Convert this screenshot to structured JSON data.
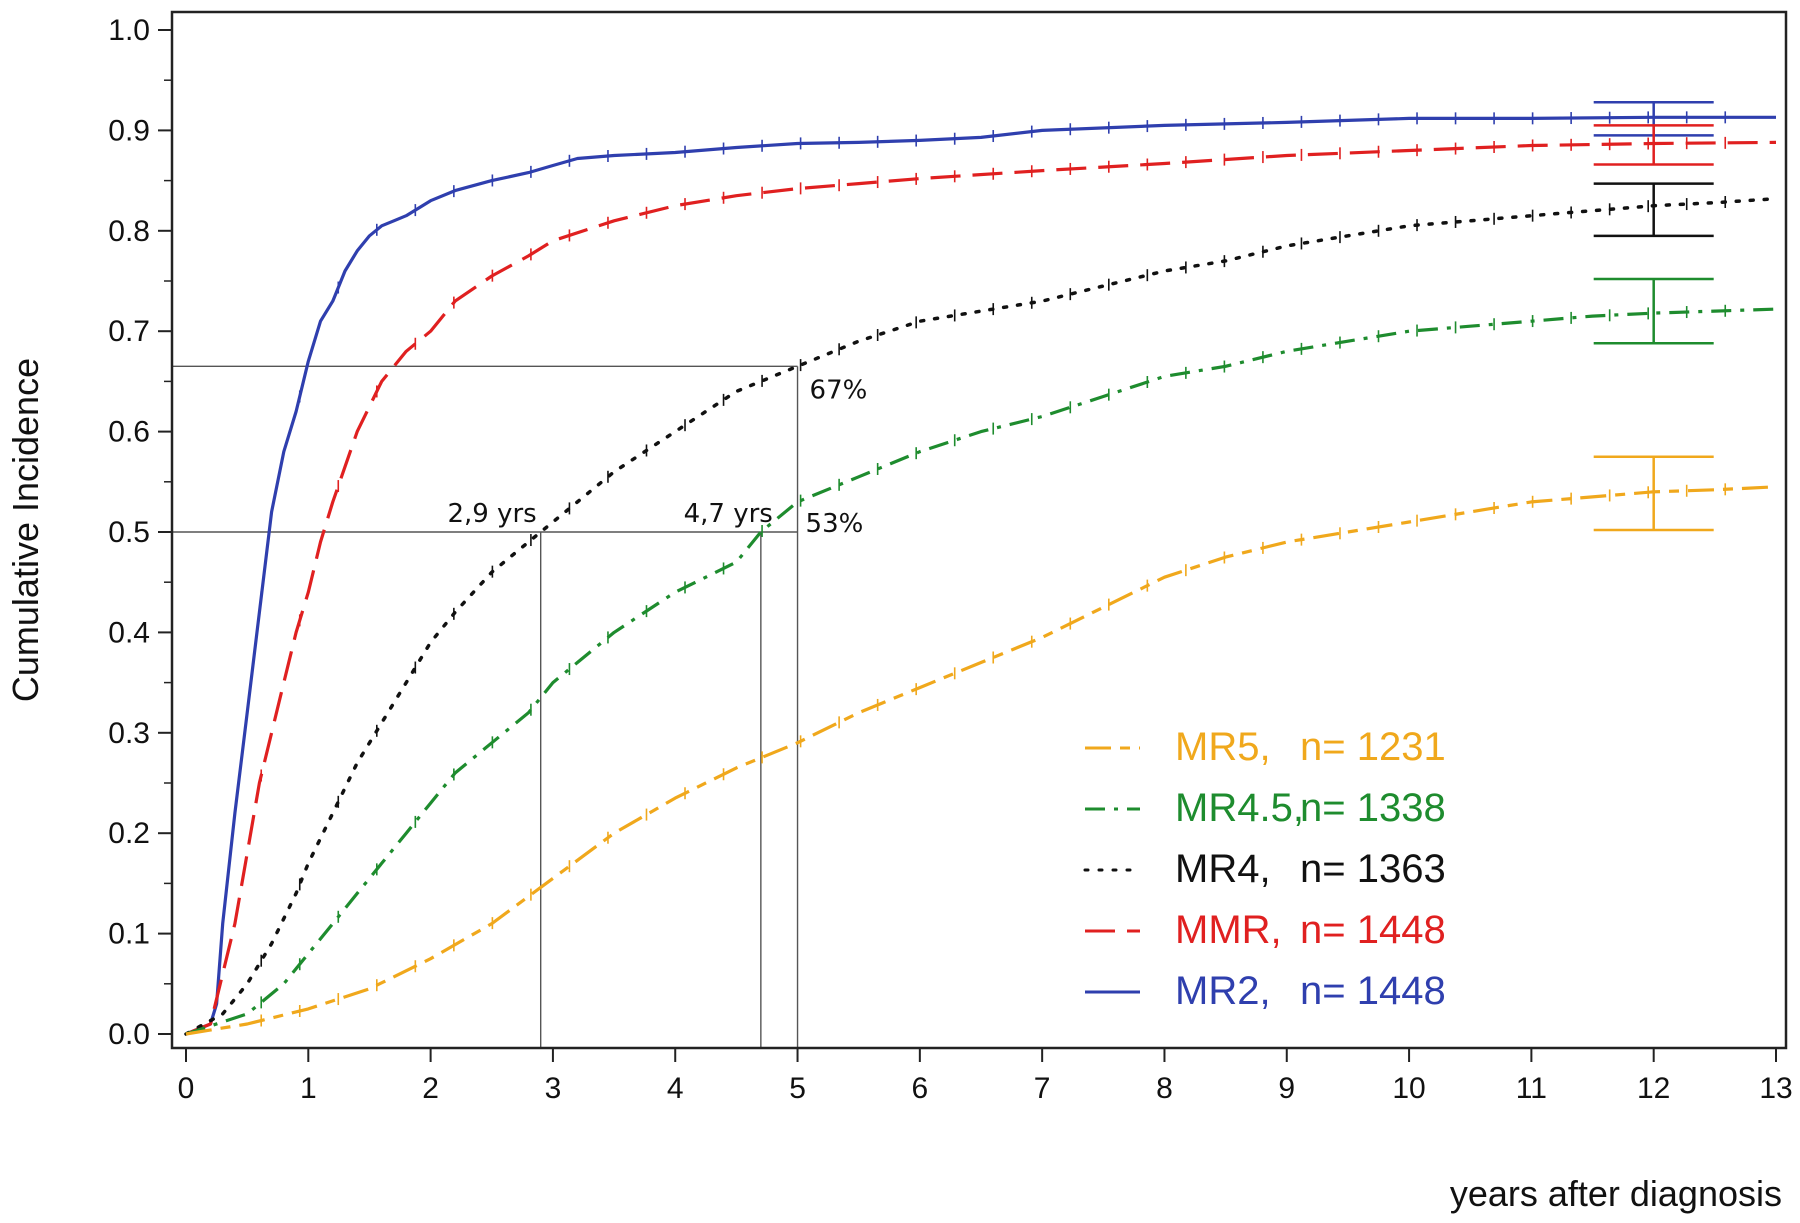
{
  "chart_data": {
    "type": "line",
    "xlabel": "years after diagnosis",
    "ylabel": "Cumulative Incidence",
    "xlim": [
      0,
      13
    ],
    "ylim": [
      0,
      1.0
    ],
    "x_ticks": [
      0,
      1,
      2,
      3,
      4,
      5,
      6,
      7,
      8,
      9,
      10,
      11,
      12,
      13
    ],
    "y_ticks": [
      0.0,
      0.1,
      0.2,
      0.3,
      0.4,
      0.5,
      0.6,
      0.7,
      0.8,
      0.9,
      1.0
    ],
    "x_tick_labels": [
      "0",
      "1",
      "2",
      "3",
      "4",
      "5",
      "6",
      "7",
      "8",
      "9",
      "10",
      "11",
      "12",
      "13"
    ],
    "y_tick_labels": [
      "0.0",
      "0.1",
      "0.2",
      "0.3",
      "0.4",
      "0.5",
      "0.6",
      "0.7",
      "0.8",
      "0.9",
      "1.0"
    ],
    "grid": false,
    "legend_position": "bottom-right",
    "series": [
      {
        "name": "MR2",
        "legend_label": "MR2,",
        "legend_n": "n= 1448",
        "color": "#2f3fae",
        "dash": "solid",
        "x": [
          0,
          0.2,
          0.25,
          0.3,
          0.4,
          0.5,
          0.55,
          0.6,
          0.7,
          0.8,
          0.9,
          1.0,
          1.1,
          1.2,
          1.3,
          1.4,
          1.5,
          1.6,
          1.7,
          1.8,
          2.0,
          2.2,
          2.5,
          2.8,
          3.0,
          3.2,
          3.5,
          4.0,
          4.5,
          5.0,
          5.5,
          6.0,
          6.5,
          7.0,
          8.0,
          9.0,
          10.0,
          11.0,
          12.0,
          13.0
        ],
        "y": [
          0,
          0.01,
          0.03,
          0.11,
          0.22,
          0.32,
          0.37,
          0.42,
          0.52,
          0.58,
          0.62,
          0.67,
          0.71,
          0.73,
          0.76,
          0.78,
          0.795,
          0.805,
          0.81,
          0.815,
          0.83,
          0.84,
          0.85,
          0.858,
          0.865,
          0.872,
          0.875,
          0.878,
          0.883,
          0.887,
          0.888,
          0.89,
          0.893,
          0.9,
          0.905,
          0.908,
          0.912,
          0.912,
          0.913,
          0.913
        ],
        "ci_at_12": [
          0.895,
          0.928
        ]
      },
      {
        "name": "MMR",
        "legend_label": "MMR,",
        "legend_n": "n= 1448",
        "color": "#e02020",
        "dash": "long-dash",
        "x": [
          0,
          0.2,
          0.3,
          0.4,
          0.5,
          0.6,
          0.7,
          0.8,
          0.9,
          1.0,
          1.1,
          1.2,
          1.4,
          1.6,
          1.8,
          2.0,
          2.2,
          2.5,
          2.8,
          3.0,
          3.5,
          4.0,
          4.5,
          5.0,
          5.5,
          6.0,
          7.0,
          8.0,
          9.0,
          10.0,
          11.0,
          12.0,
          13.0
        ],
        "y": [
          0,
          0.01,
          0.06,
          0.11,
          0.18,
          0.25,
          0.3,
          0.35,
          0.4,
          0.44,
          0.49,
          0.53,
          0.6,
          0.65,
          0.68,
          0.7,
          0.73,
          0.755,
          0.775,
          0.79,
          0.81,
          0.825,
          0.835,
          0.842,
          0.847,
          0.852,
          0.86,
          0.867,
          0.875,
          0.88,
          0.885,
          0.887,
          0.888
        ],
        "ci_at_12": [
          0.866,
          0.905
        ]
      },
      {
        "name": "MR4",
        "legend_label": "MR4,",
        "legend_n": "n= 1363",
        "color": "#111111",
        "dash": "dotted",
        "x": [
          0,
          0.3,
          0.5,
          0.7,
          0.9,
          1.0,
          1.2,
          1.4,
          1.6,
          1.8,
          2.0,
          2.2,
          2.5,
          2.9,
          3.0,
          3.5,
          4.0,
          4.5,
          5.0,
          5.5,
          6.0,
          6.5,
          7.0,
          7.5,
          8.0,
          8.5,
          9.0,
          9.5,
          10.0,
          10.5,
          11.0,
          11.5,
          12.0,
          12.5,
          13.0
        ],
        "y": [
          0,
          0.02,
          0.05,
          0.09,
          0.14,
          0.17,
          0.22,
          0.27,
          0.31,
          0.35,
          0.39,
          0.42,
          0.46,
          0.5,
          0.51,
          0.56,
          0.6,
          0.64,
          0.665,
          0.69,
          0.71,
          0.72,
          0.73,
          0.745,
          0.76,
          0.77,
          0.785,
          0.795,
          0.805,
          0.81,
          0.815,
          0.82,
          0.825,
          0.828,
          0.832
        ],
        "ci_at_12": [
          0.795,
          0.847
        ]
      },
      {
        "name": "MR4.5",
        "legend_label": "MR4.5,",
        "legend_n": "n= 1338",
        "color": "#1e8c2e",
        "dash": "dash-dot",
        "x": [
          0,
          0.5,
          0.8,
          1.0,
          1.2,
          1.4,
          1.6,
          1.8,
          2.0,
          2.2,
          2.5,
          2.8,
          3.0,
          3.2,
          3.5,
          4.0,
          4.5,
          4.7,
          5.0,
          5.5,
          6.0,
          6.5,
          7.0,
          7.5,
          8.0,
          8.5,
          9.0,
          9.5,
          10.0,
          10.5,
          11.0,
          11.5,
          12.0,
          12.5,
          13.0
        ],
        "y": [
          0,
          0.02,
          0.05,
          0.08,
          0.11,
          0.14,
          0.17,
          0.2,
          0.23,
          0.26,
          0.29,
          0.32,
          0.35,
          0.37,
          0.4,
          0.44,
          0.47,
          0.5,
          0.53,
          0.555,
          0.58,
          0.6,
          0.615,
          0.635,
          0.655,
          0.665,
          0.68,
          0.69,
          0.7,
          0.705,
          0.71,
          0.715,
          0.718,
          0.72,
          0.722
        ],
        "ci_at_12": [
          0.688,
          0.752
        ]
      },
      {
        "name": "MR5",
        "legend_label": "MR5,",
        "legend_n": "n= 1231",
        "color": "#f0a81c",
        "dash": "long-short-dash",
        "x": [
          0,
          0.5,
          1.0,
          1.5,
          2.0,
          2.5,
          3.0,
          3.5,
          4.0,
          4.5,
          5.0,
          5.5,
          6.0,
          6.5,
          7.0,
          7.5,
          8.0,
          8.5,
          9.0,
          9.5,
          10.0,
          10.5,
          11.0,
          11.5,
          12.0,
          12.5,
          13.0
        ],
        "y": [
          0,
          0.01,
          0.025,
          0.045,
          0.075,
          0.11,
          0.155,
          0.2,
          0.235,
          0.265,
          0.29,
          0.32,
          0.345,
          0.37,
          0.395,
          0.425,
          0.455,
          0.475,
          0.49,
          0.5,
          0.51,
          0.52,
          0.53,
          0.535,
          0.54,
          0.542,
          0.545
        ],
        "ci_at_12": [
          0.502,
          0.575
        ]
      }
    ],
    "reference_lines": {
      "horizontal": [
        0.665,
        0.5
      ],
      "vertical": [
        {
          "x": 2.9,
          "y_top": 0.5
        },
        {
          "x": 4.7,
          "y_top": 0.5
        },
        {
          "x": 5.0,
          "y_top": 0.665
        }
      ]
    },
    "annotations": [
      {
        "text": "2,9 yrs",
        "x": 2.9,
        "y": 0.5
      },
      {
        "text": "4,7 yrs",
        "x": 4.7,
        "y": 0.5
      },
      {
        "text": "67%",
        "x": 5.0,
        "y": 0.665
      },
      {
        "text": "53%",
        "x": 5.0,
        "y": 0.53
      }
    ]
  }
}
